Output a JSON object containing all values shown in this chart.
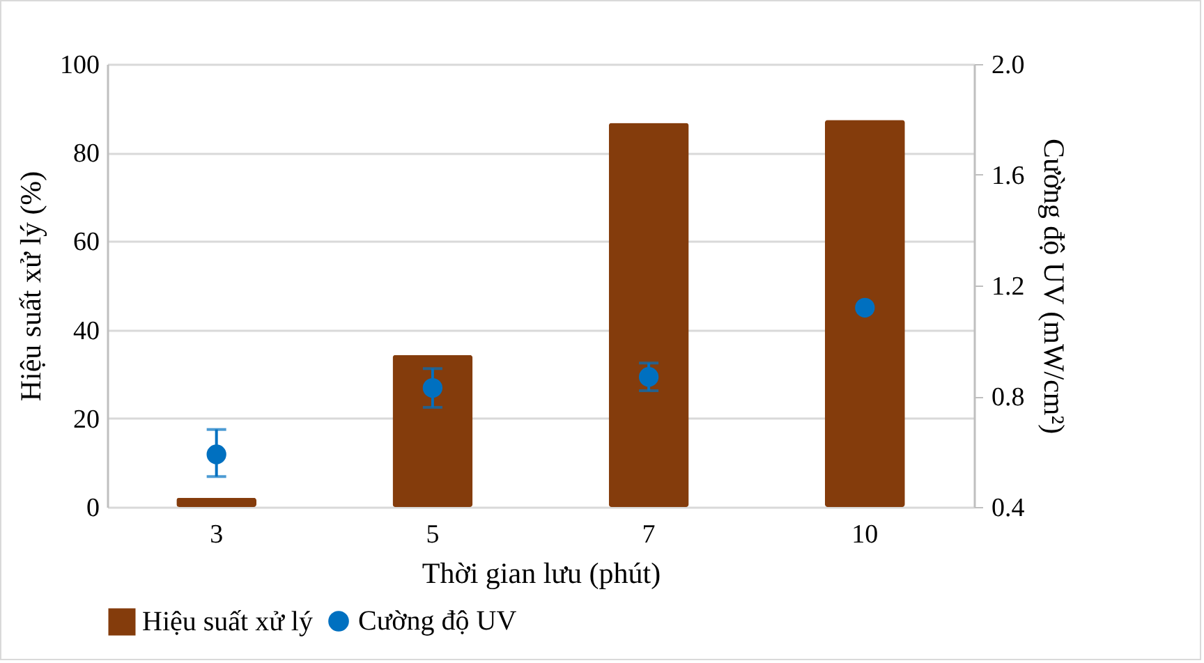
{
  "chart_data": {
    "type": "bar",
    "categories": [
      "3",
      "5",
      "7",
      "10"
    ],
    "xlabel": "Thời gian lưu (phút)",
    "ylabel": "Hiệu suất xử lý (%)",
    "y2label": "Cường độ UV (mW/cm²)",
    "ylim": [
      0,
      100
    ],
    "yticks": [
      0,
      20,
      40,
      60,
      80,
      100
    ],
    "y2lim": [
      0.4,
      2.0
    ],
    "y2ticks": [
      0.4,
      0.8,
      1.2,
      1.6,
      {
        "value": 2,
        "label": "2.0"
      }
    ],
    "grid": "y",
    "legend": "bottom",
    "marker": "circle",
    "series": [
      {
        "name": "Hiệu suất xử lý",
        "color": "#843c0c",
        "values": [
          2.1,
          34.3,
          86.7,
          87.4
        ]
      },
      {
        "name": "Cường độ UV",
        "type": "scatter",
        "axis": "y2",
        "color": "#0070c0",
        "values": [
          0.59,
          0.83,
          0.87,
          1.12
        ],
        "errors": [
          [
            0.51,
            0.68
          ],
          [
            0.76,
            0.9
          ],
          [
            0.82,
            0.92
          ],
          null
        ]
      }
    ]
  }
}
